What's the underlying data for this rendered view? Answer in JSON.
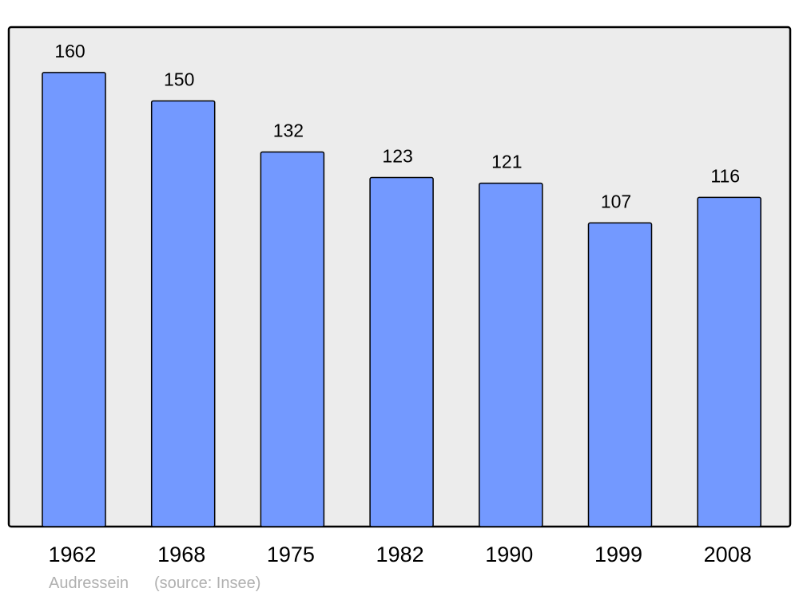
{
  "chart_data": {
    "type": "bar",
    "categories": [
      "1962",
      "1968",
      "1975",
      "1982",
      "1990",
      "1999",
      "2008"
    ],
    "values": [
      160,
      150,
      132,
      123,
      121,
      107,
      116
    ],
    "ylim": [
      0,
      176
    ],
    "grid": false,
    "bar_color": "#7399ff",
    "background_color": "#ececec",
    "title": "",
    "xlabel": "",
    "ylabel": ""
  },
  "footer": {
    "place": "Audressein",
    "source": "(source: Insee)"
  }
}
